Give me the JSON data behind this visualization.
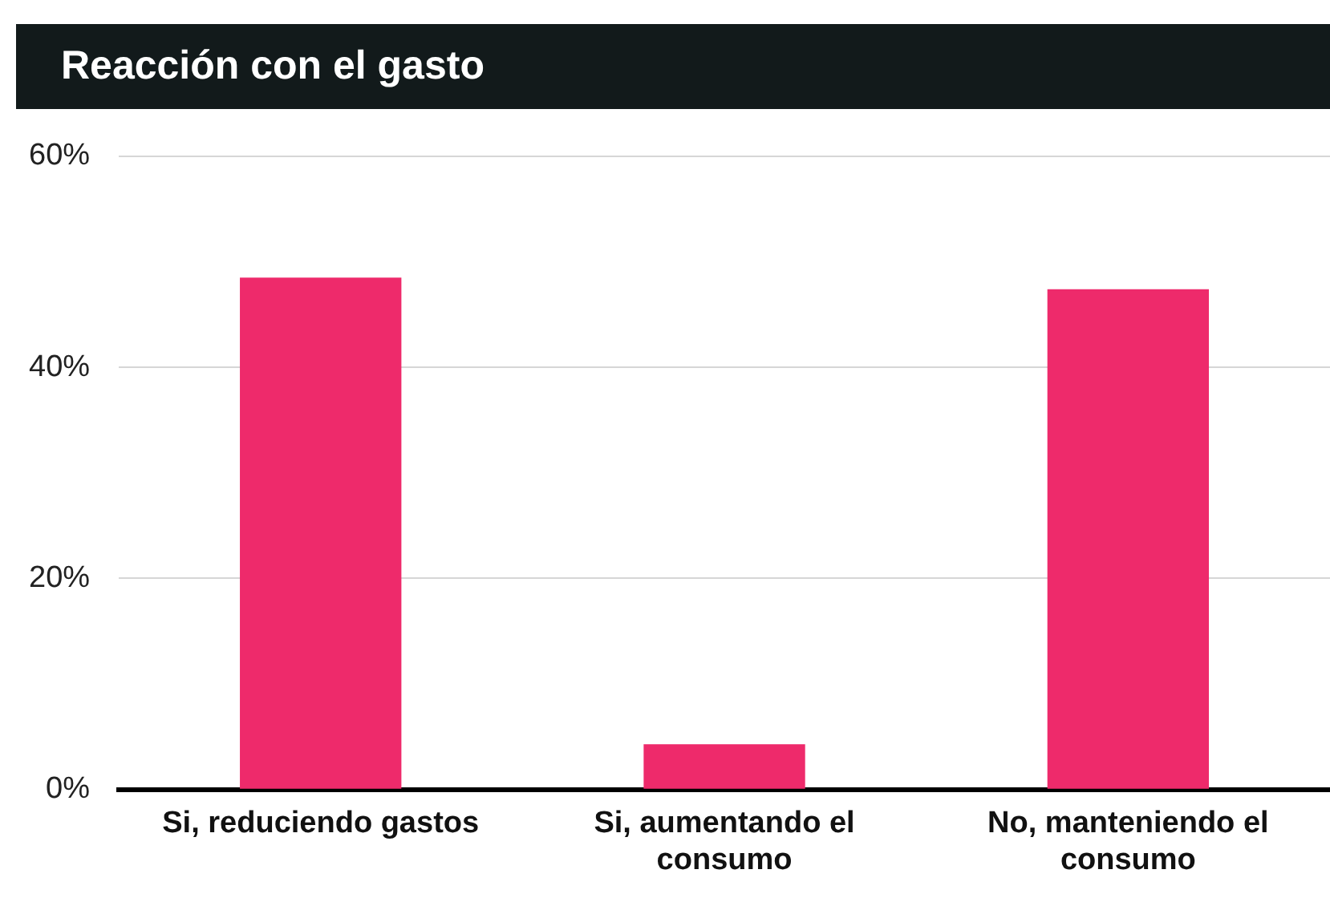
{
  "chart_data": {
    "type": "bar",
    "title": "Reacción con el gasto",
    "categories": [
      "Si, reduciendo gastos",
      "Si, aumentando el consumo",
      "No, manteniendo el consumo"
    ],
    "values": [
      48.5,
      4.3,
      47.4
    ],
    "color": "#ee2a6b",
    "ylim": [
      0,
      60
    ],
    "yticks": [
      {
        "value": 0,
        "label": "0%"
      },
      {
        "value": 20,
        "label": "20%"
      },
      {
        "value": 40,
        "label": "40%"
      },
      {
        "value": 60,
        "label": "60%"
      }
    ],
    "grid": "y",
    "legend": false
  }
}
